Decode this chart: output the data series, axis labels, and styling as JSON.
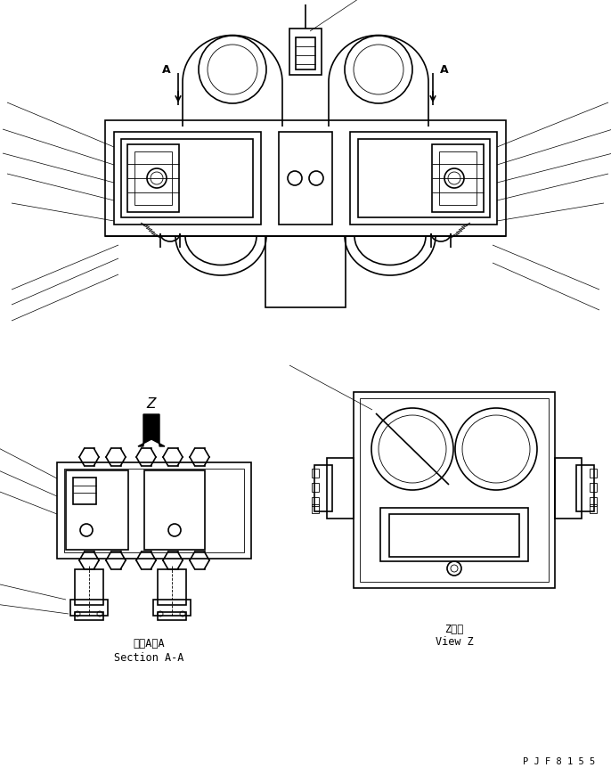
{
  "background_color": "#ffffff",
  "line_color": "#000000",
  "lw_main": 1.2,
  "lw_thin": 0.6,
  "lw_leader": 0.5,
  "page_id": "P J F 8 1 5 5",
  "section_label_ja": "断面A－A",
  "section_label_en": "Section A-A",
  "view_label_ja": "Z　視",
  "view_label_en": "View Z",
  "arrow_z_label": "Z",
  "fig_w": 6.86,
  "fig_h": 8.71,
  "dpi": 100
}
